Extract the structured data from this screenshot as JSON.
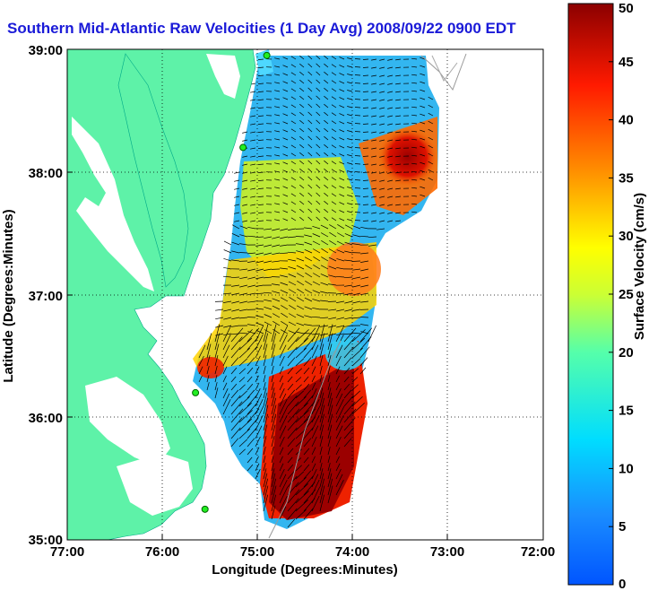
{
  "title": "Southern Mid-Atlantic Raw Velocities (1 Day Avg) 2008/09/22 0900 EDT",
  "map": {
    "xlabel": "Longitude (Degrees:Minutes)",
    "ylabel": "Latitude (Degrees:Minutes)",
    "x_ticks": [
      "77:00",
      "76:00",
      "75:00",
      "74:00",
      "73:00",
      "72:00"
    ],
    "y_ticks": [
      "39:00",
      "38:00",
      "37:00",
      "36:00",
      "35:00"
    ],
    "land_color": "#5ef2a8",
    "grid": "dotted"
  },
  "colorbar": {
    "label": "Surface Velocity (cm/s)",
    "ticks": [
      "50",
      "45",
      "40",
      "35",
      "30",
      "25",
      "20",
      "15",
      "10",
      "5",
      "0"
    ],
    "min": 0,
    "max": 50
  },
  "stations": [
    {
      "name": "station-1",
      "lon": -74.9,
      "lat": 38.95
    },
    {
      "name": "station-2",
      "lon": -75.15,
      "lat": 38.2
    },
    {
      "name": "station-3",
      "lon": -75.65,
      "lat": 36.2
    },
    {
      "name": "station-4",
      "lon": -75.55,
      "lat": 35.25
    }
  ]
}
